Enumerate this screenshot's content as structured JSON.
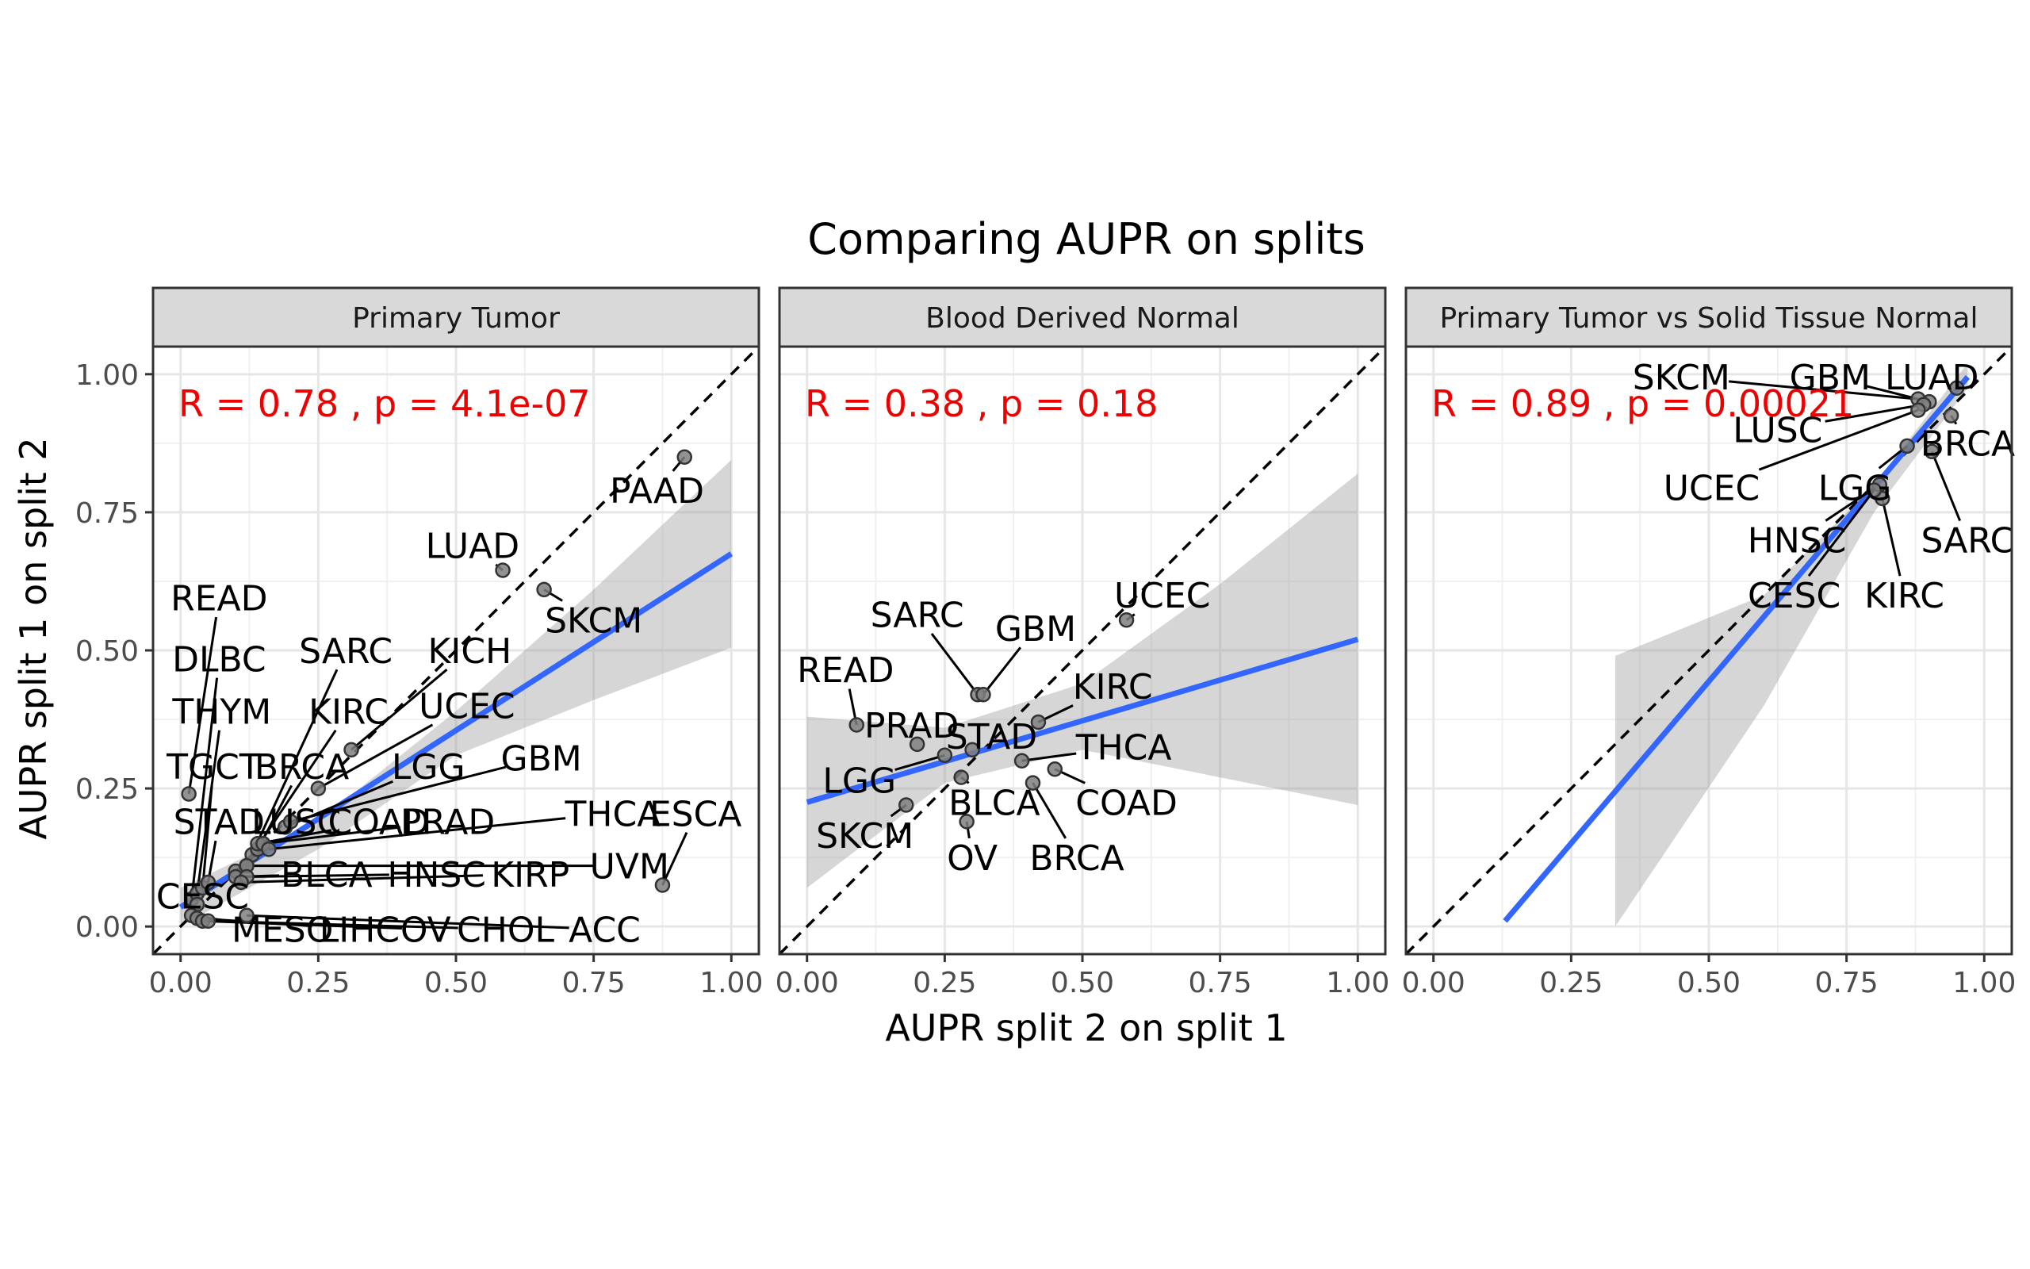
{
  "figure": {
    "title": "Comparing AUPR on splits",
    "xlabel": "AUPR split 2 on split 1",
    "ylabel": "AUPR split 1 on split 2"
  },
  "chart_data": [
    {
      "type": "scatter",
      "panel": "Primary Tumor",
      "stat_label": "R = 0.78 , p = 4.1e-07",
      "xlim": [
        -0.05,
        1.05
      ],
      "ylim": [
        -0.05,
        1.05
      ],
      "x_ticks": [
        "0.00",
        "0.25",
        "0.50",
        "0.75",
        "1.00"
      ],
      "y_ticks": [
        "0.00",
        "0.25",
        "0.50",
        "0.75",
        "1.00"
      ],
      "regression": {
        "x": [
          0.0,
          1.0
        ],
        "y": [
          0.035,
          0.675
        ]
      },
      "ci_band": {
        "x": [
          0.0,
          0.25,
          0.5,
          0.75,
          1.0
        ],
        "upper": [
          0.07,
          0.19,
          0.39,
          0.61,
          0.845
        ],
        "lower": [
          0.0,
          0.14,
          0.31,
          0.41,
          0.505
        ]
      },
      "points": [
        {
          "label": "PAAD",
          "x": 0.915,
          "y": 0.85,
          "lx": 0.865,
          "ly": 0.79
        },
        {
          "label": "LUAD",
          "x": 0.585,
          "y": 0.645,
          "lx": 0.53,
          "ly": 0.69
        },
        {
          "label": "SKCM",
          "x": 0.66,
          "y": 0.61,
          "lx": 0.75,
          "ly": 0.555
        },
        {
          "label": "READ",
          "x": 0.015,
          "y": 0.24,
          "lx": 0.07,
          "ly": 0.595
        },
        {
          "label": "DLBC",
          "x": 0.02,
          "y": 0.05,
          "lx": 0.07,
          "ly": 0.485
        },
        {
          "label": "SARC",
          "x": 0.12,
          "y": 0.11,
          "lx": 0.3,
          "ly": 0.5
        },
        {
          "label": "KICH",
          "x": 0.31,
          "y": 0.32,
          "lx": 0.525,
          "ly": 0.5
        },
        {
          "label": "THYM",
          "x": 0.03,
          "y": 0.06,
          "lx": 0.075,
          "ly": 0.39
        },
        {
          "label": "KIRC",
          "x": 0.13,
          "y": 0.13,
          "lx": 0.305,
          "ly": 0.39
        },
        {
          "label": "UCEC",
          "x": 0.25,
          "y": 0.25,
          "lx": 0.52,
          "ly": 0.4
        },
        {
          "label": "TGCT",
          "x": 0.04,
          "y": 0.07,
          "lx": 0.06,
          "ly": 0.29
        },
        {
          "label": "BRCA",
          "x": 0.14,
          "y": 0.14,
          "lx": 0.22,
          "ly": 0.29
        },
        {
          "label": "LGG",
          "x": 0.19,
          "y": 0.18,
          "lx": 0.45,
          "ly": 0.29
        },
        {
          "label": "GBM",
          "x": 0.2,
          "y": 0.19,
          "lx": 0.655,
          "ly": 0.305
        },
        {
          "label": "STAD",
          "x": 0.05,
          "y": 0.08,
          "lx": 0.07,
          "ly": 0.19
        },
        {
          "label": "LUSC",
          "x": 0.1,
          "y": 0.1,
          "lx": 0.21,
          "ly": 0.19
        },
        {
          "label": "COAD",
          "x": 0.14,
          "y": 0.15,
          "lx": 0.36,
          "ly": 0.19
        },
        {
          "label": "PRAD",
          "x": 0.15,
          "y": 0.15,
          "lx": 0.485,
          "ly": 0.19
        },
        {
          "label": "THCA",
          "x": 0.16,
          "y": 0.14,
          "lx": 0.785,
          "ly": 0.205
        },
        {
          "label": "ESCA",
          "x": 0.875,
          "y": 0.075,
          "lx": 0.935,
          "ly": 0.205
        },
        {
          "label": "UVM",
          "x": 0.12,
          "y": 0.11,
          "lx": 0.815,
          "ly": 0.11
        },
        {
          "label": "BLCA",
          "x": 0.1,
          "y": 0.09,
          "lx": 0.265,
          "ly": 0.095
        },
        {
          "label": "HNSC",
          "x": 0.12,
          "y": 0.09,
          "lx": 0.465,
          "ly": 0.095
        },
        {
          "label": "KIRP",
          "x": 0.11,
          "y": 0.08,
          "lx": 0.635,
          "ly": 0.095
        },
        {
          "label": "CESC",
          "x": 0.03,
          "y": 0.04,
          "lx": 0.04,
          "ly": 0.055
        },
        {
          "label": "MESO",
          "x": 0.02,
          "y": 0.02,
          "lx": 0.185,
          "ly": -0.005
        },
        {
          "label": "LIHC",
          "x": 0.03,
          "y": 0.015,
          "lx": 0.325,
          "ly": -0.005
        },
        {
          "label": "OV",
          "x": 0.04,
          "y": 0.01,
          "lx": 0.445,
          "ly": -0.005
        },
        {
          "label": "CHOL",
          "x": 0.05,
          "y": 0.01,
          "lx": 0.59,
          "ly": -0.005
        },
        {
          "label": "ACC",
          "x": 0.12,
          "y": 0.02,
          "lx": 0.77,
          "ly": -0.005
        }
      ]
    },
    {
      "type": "scatter",
      "panel": "Blood Derived Normal",
      "stat_label": "R = 0.38 , p = 0.18",
      "xlim": [
        -0.05,
        1.05
      ],
      "ylim": [
        -0.05,
        1.05
      ],
      "x_ticks": [
        "0.00",
        "0.25",
        "0.50",
        "0.75",
        "1.00"
      ],
      "regression": {
        "x": [
          0.0,
          1.0
        ],
        "y": [
          0.225,
          0.52
        ]
      },
      "ci_band": {
        "x": [
          0.0,
          0.25,
          0.5,
          0.75,
          1.0
        ],
        "upper": [
          0.38,
          0.36,
          0.44,
          0.62,
          0.82
        ],
        "lower": [
          0.07,
          0.26,
          0.32,
          0.27,
          0.22
        ]
      },
      "points": [
        {
          "label": "UCEC",
          "x": 0.58,
          "y": 0.555,
          "lx": 0.645,
          "ly": 0.6
        },
        {
          "label": "SARC",
          "x": 0.31,
          "y": 0.42,
          "lx": 0.2,
          "ly": 0.565
        },
        {
          "label": "GBM",
          "x": 0.32,
          "y": 0.42,
          "lx": 0.415,
          "ly": 0.54
        },
        {
          "label": "READ",
          "x": 0.09,
          "y": 0.365,
          "lx": 0.07,
          "ly": 0.465
        },
        {
          "label": "KIRC",
          "x": 0.42,
          "y": 0.37,
          "lx": 0.555,
          "ly": 0.435
        },
        {
          "label": "PRAD",
          "x": 0.2,
          "y": 0.33,
          "lx": 0.19,
          "ly": 0.365
        },
        {
          "label": "STAD",
          "x": 0.3,
          "y": 0.32,
          "lx": 0.335,
          "ly": 0.345
        },
        {
          "label": "THCA",
          "x": 0.39,
          "y": 0.3,
          "lx": 0.575,
          "ly": 0.325
        },
        {
          "label": "LGG",
          "x": 0.25,
          "y": 0.31,
          "lx": 0.095,
          "ly": 0.265
        },
        {
          "label": "COAD",
          "x": 0.45,
          "y": 0.285,
          "lx": 0.58,
          "ly": 0.225
        },
        {
          "label": "BLCA",
          "x": 0.28,
          "y": 0.27,
          "lx": 0.34,
          "ly": 0.225
        },
        {
          "label": "BRCA",
          "x": 0.41,
          "y": 0.26,
          "lx": 0.49,
          "ly": 0.125
        },
        {
          "label": "SKCM",
          "x": 0.18,
          "y": 0.22,
          "lx": 0.105,
          "ly": 0.165
        },
        {
          "label": "OV",
          "x": 0.29,
          "y": 0.19,
          "lx": 0.3,
          "ly": 0.125
        }
      ]
    },
    {
      "type": "scatter",
      "panel": "Primary Tumor vs Solid Tissue Normal",
      "stat_label": "R = 0.89 , p = 0.00021",
      "xlim": [
        -0.05,
        1.05
      ],
      "ylim": [
        -0.05,
        1.05
      ],
      "x_ticks": [
        "0.00",
        "0.25",
        "0.50",
        "0.75",
        "1.00"
      ],
      "regression": {
        "x": [
          0.13,
          0.97
        ],
        "y": [
          0.01,
          0.995
        ]
      },
      "ci_band": {
        "x": [
          0.33,
          0.6,
          0.8,
          0.97
        ],
        "upper": [
          0.49,
          0.6,
          0.8,
          1.02
        ],
        "lower": [
          0.0,
          0.4,
          0.75,
          0.975
        ]
      },
      "points": [
        {
          "label": "SKCM",
          "x": 0.88,
          "y": 0.955,
          "lx": 0.45,
          "ly": 0.995
        },
        {
          "label": "GBM",
          "x": 0.9,
          "y": 0.95,
          "lx": 0.72,
          "ly": 0.995
        },
        {
          "label": "LUAD",
          "x": 0.95,
          "y": 0.975,
          "lx": 0.905,
          "ly": 0.995
        },
        {
          "label": "LUSC",
          "x": 0.89,
          "y": 0.945,
          "lx": 0.625,
          "ly": 0.9
        },
        {
          "label": "BRCA",
          "x": 0.94,
          "y": 0.925,
          "lx": 0.97,
          "ly": 0.875
        },
        {
          "label": "UCEC",
          "x": 0.88,
          "y": 0.935,
          "lx": 0.505,
          "ly": 0.795
        },
        {
          "label": "LGG",
          "x": 0.86,
          "y": 0.87,
          "lx": 0.765,
          "ly": 0.795
        },
        {
          "label": "SARC",
          "x": 0.905,
          "y": 0.86,
          "lx": 0.97,
          "ly": 0.7
        },
        {
          "label": "HNSC",
          "x": 0.81,
          "y": 0.8,
          "lx": 0.66,
          "ly": 0.7
        },
        {
          "label": "KIRC",
          "x": 0.815,
          "y": 0.775,
          "lx": 0.855,
          "ly": 0.6
        },
        {
          "label": "CESC",
          "x": 0.8,
          "y": 0.79,
          "lx": 0.655,
          "ly": 0.6
        }
      ]
    }
  ]
}
